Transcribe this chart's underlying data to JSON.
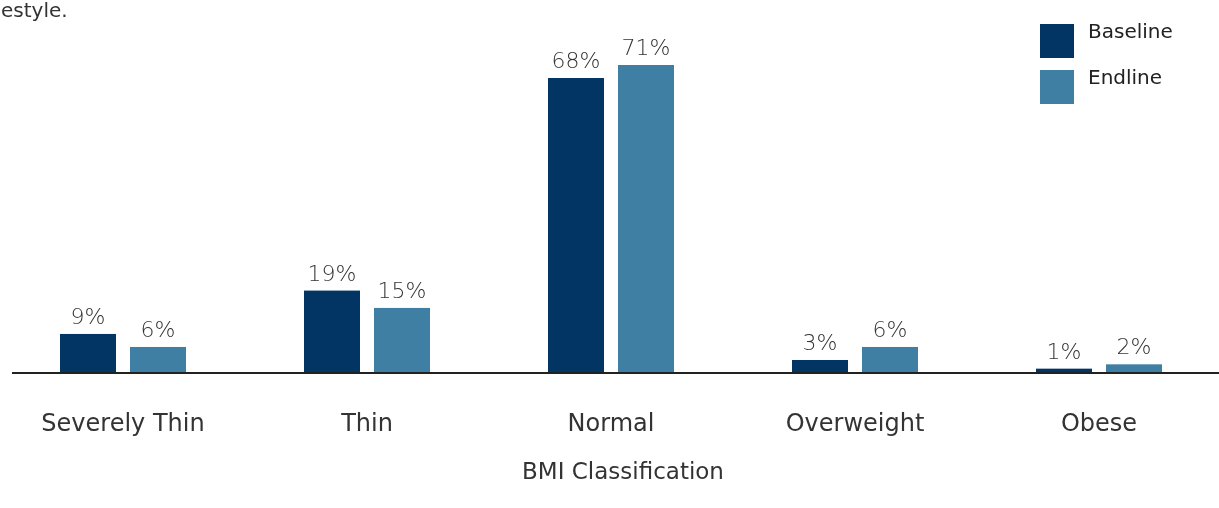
{
  "chart_data": {
    "type": "bar",
    "xlabel": "BMI Classification",
    "categories": [
      "Severely Thin",
      "Thin",
      "Normal",
      "Overweight",
      "Obese"
    ],
    "series": [
      {
        "name": "Baseline",
        "color": "#023564",
        "values": [
          9,
          19,
          68,
          3,
          1
        ],
        "value_labels": [
          "9%",
          "19%",
          "68%",
          "3%",
          "1%"
        ]
      },
      {
        "name": "Endline",
        "color": "#3e7fa3",
        "values": [
          6,
          15,
          71,
          6,
          2
        ],
        "value_labels": [
          "6%",
          "15%",
          "71%",
          "6%",
          "2%"
        ]
      }
    ],
    "legend": "top right",
    "annotations": [
      "estyle."
    ]
  }
}
